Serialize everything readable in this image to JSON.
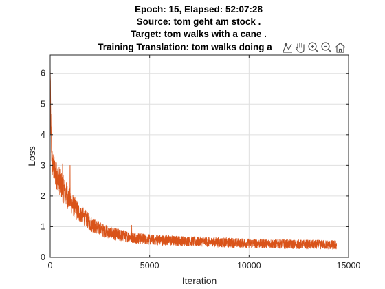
{
  "chart_data": {
    "type": "line",
    "title_lines": [
      "Epoch: 15, Elapsed: 52:07:28",
      "Source: tom geht am stock .",
      "Target: tom walks with a cane .",
      "Training Translation: tom walks doing a"
    ],
    "xlabel": "Iteration",
    "ylabel": "Loss",
    "xlim": [
      0,
      15000
    ],
    "ylim": [
      0,
      6.6
    ],
    "xticks": [
      0,
      5000,
      10000,
      15000
    ],
    "yticks": [
      0,
      1,
      2,
      3,
      4,
      5,
      6
    ],
    "grid": true,
    "series": [
      {
        "color": "#D95319",
        "x": [
          0,
          30,
          60,
          100,
          150,
          200,
          300,
          400,
          500,
          600,
          700,
          800,
          900,
          1000,
          1200,
          1400,
          1600,
          1800,
          2000,
          2300,
          2600,
          3000,
          3500,
          4000,
          4500,
          5000,
          6000,
          7000,
          8000,
          9000,
          10000,
          11000,
          12000,
          13000,
          14000,
          14400
        ],
        "y": [
          6.5,
          4.5,
          3.6,
          3.1,
          2.95,
          2.85,
          2.7,
          2.6,
          2.45,
          2.3,
          2.2,
          2.05,
          1.95,
          1.85,
          1.65,
          1.5,
          1.38,
          1.25,
          1.12,
          1.0,
          0.9,
          0.8,
          0.72,
          0.67,
          0.62,
          0.58,
          0.55,
          0.52,
          0.5,
          0.48,
          0.46,
          0.45,
          0.43,
          0.42,
          0.41,
          0.4
        ],
        "noise_amplitude": [
          0.1,
          0.6,
          0.5,
          0.5,
          0.45,
          0.45,
          0.45,
          0.45,
          0.45,
          0.45,
          0.45,
          0.42,
          0.4,
          0.38,
          0.35,
          0.32,
          0.3,
          0.28,
          0.26,
          0.24,
          0.22,
          0.2,
          0.2,
          0.18,
          0.18,
          0.17,
          0.17,
          0.16,
          0.16,
          0.16,
          0.15,
          0.15,
          0.15,
          0.15,
          0.15,
          0.15
        ],
        "spikes": [
          {
            "x": 1000,
            "y": 3.0
          },
          {
            "x": 620,
            "y": 3.05
          },
          {
            "x": 4100,
            "y": 1.05
          }
        ]
      }
    ]
  },
  "toolbar": [
    {
      "name": "data-tips-icon"
    },
    {
      "name": "pan-icon"
    },
    {
      "name": "zoom-in-icon"
    },
    {
      "name": "zoom-out-icon"
    },
    {
      "name": "home-icon"
    }
  ]
}
